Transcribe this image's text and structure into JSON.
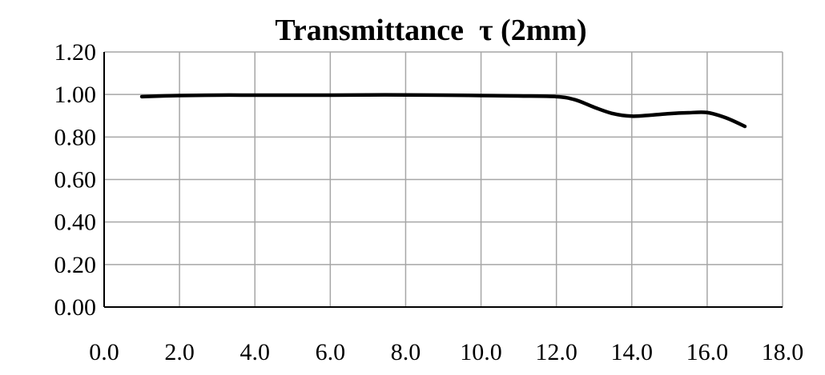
{
  "chart_data": {
    "type": "line",
    "title": "Transmittance  τ (2mm)",
    "xlabel": "",
    "ylabel": "",
    "xlim": [
      0,
      18
    ],
    "ylim": [
      0,
      1.2
    ],
    "x_ticks": [
      "0.0",
      "2.0",
      "4.0",
      "6.0",
      "8.0",
      "10.0",
      "12.0",
      "14.0",
      "16.0",
      "18.0"
    ],
    "y_ticks": [
      "0.00",
      "0.20",
      "0.40",
      "0.60",
      "0.80",
      "1.00",
      "1.20"
    ],
    "grid": true,
    "legend": "none",
    "series": [
      {
        "color": "#000000",
        "x": [
          1.0,
          2.0,
          3.0,
          4.0,
          5.0,
          6.0,
          7.0,
          8.0,
          9.0,
          10.0,
          11.0,
          12.0,
          12.5,
          13.0,
          13.5,
          14.0,
          14.5,
          15.0,
          15.5,
          16.0,
          16.5,
          17.0
        ],
        "y": [
          0.99,
          0.995,
          0.997,
          0.997,
          0.997,
          0.997,
          0.998,
          0.998,
          0.997,
          0.995,
          0.993,
          0.99,
          0.975,
          0.94,
          0.91,
          0.898,
          0.903,
          0.91,
          0.914,
          0.915,
          0.89,
          0.85
        ]
      }
    ]
  }
}
